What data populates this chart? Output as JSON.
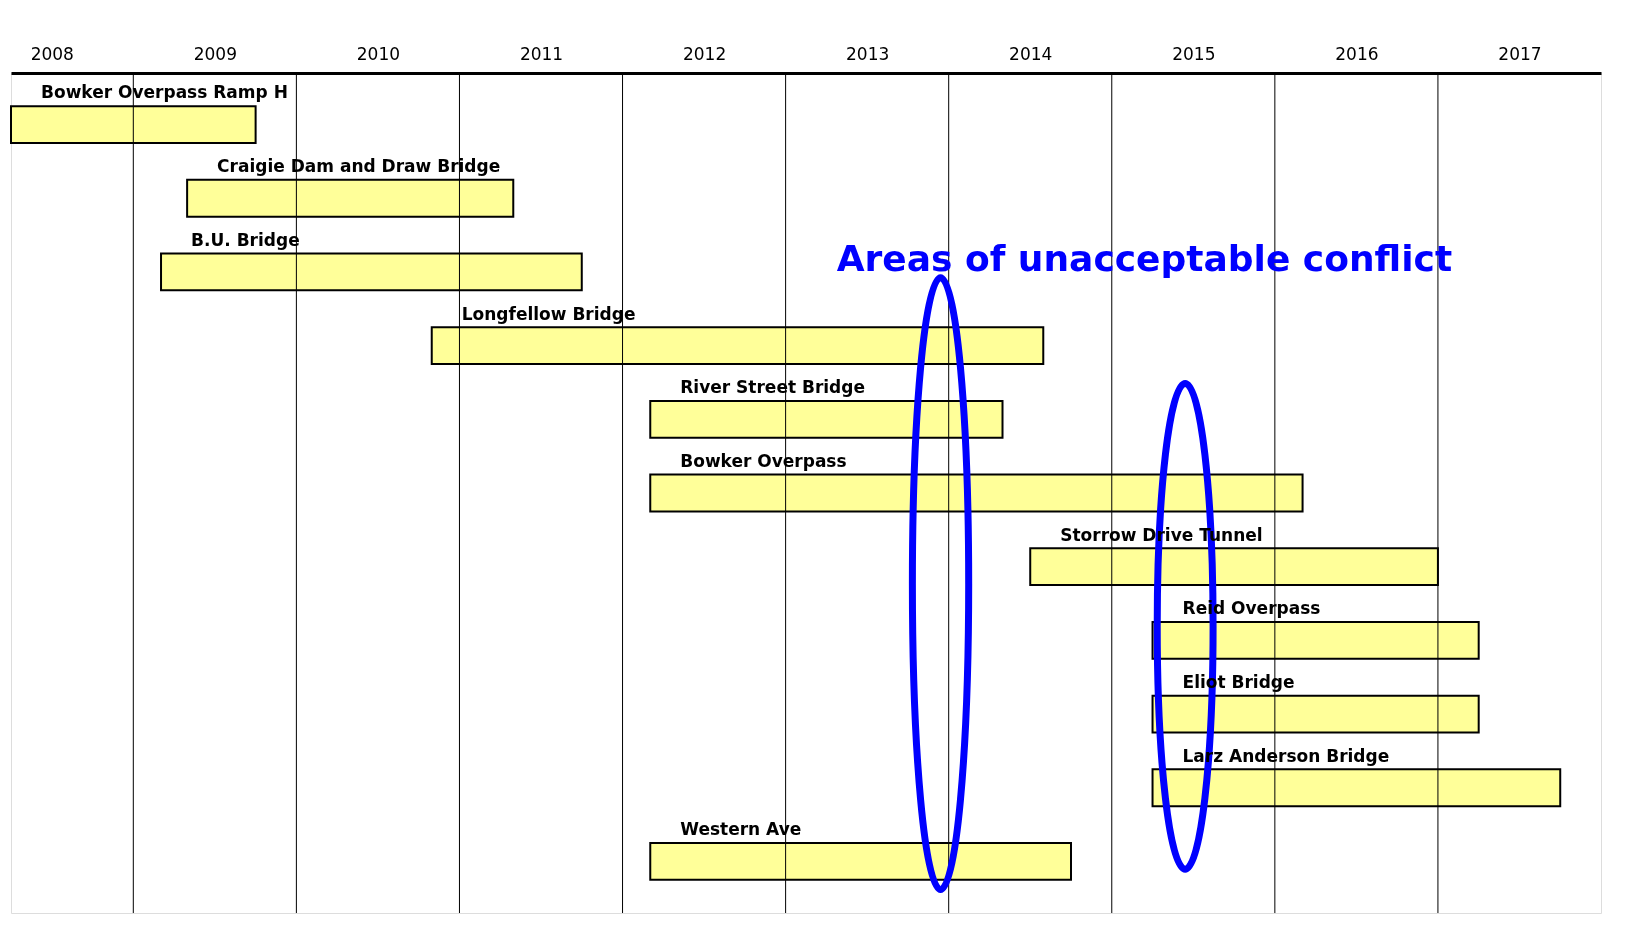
{
  "chart_data": {
    "type": "bar",
    "orientation": "horizontal",
    "categories": [
      "Bowker Overpass Ramp H",
      "Craigie Dam and Draw Bridge",
      "B.U. Bridge",
      "Longfellow Bridge",
      "River Street Bridge",
      "Bowker Overpass",
      "Storrow Drive Tunnel",
      "Reid Overpass",
      "Eliot Bridge",
      "Larz Anderson Bridge",
      "Western Ave"
    ],
    "base": [
      2008.25,
      2009.33,
      2009.17,
      2010.83,
      2012.17,
      2012.17,
      2014.5,
      2015.25,
      2015.25,
      2015.25,
      2012.17
    ],
    "values": [
      1.5,
      2.0,
      2.58,
      3.75,
      2.16,
      4.0,
      2.5,
      2.0,
      2.0,
      2.5,
      2.58
    ],
    "color": "#ffff99",
    "xlim": [
      2008.25,
      2018
    ],
    "xticks": [
      {
        "value": 2009,
        "label": null
      },
      {
        "value": 2010,
        "label": null
      },
      {
        "value": 2011,
        "label": null
      },
      {
        "value": 2012,
        "label": null
      },
      {
        "value": 2013,
        "label": null
      },
      {
        "value": 2014,
        "label": null
      },
      {
        "value": 2015,
        "label": null
      },
      {
        "value": 2016,
        "label": null
      },
      {
        "value": 2017,
        "label": null
      },
      {
        "value": 2008.5,
        "label": "2008"
      },
      {
        "value": 2009.5,
        "label": "2009"
      },
      {
        "value": 2010.5,
        "label": "2010"
      },
      {
        "value": 2011.5,
        "label": "2011"
      },
      {
        "value": 2012.5,
        "label": "2012"
      },
      {
        "value": 2013.5,
        "label": "2013"
      },
      {
        "value": 2014.5,
        "label": "2014"
      },
      {
        "value": 2015.5,
        "label": "2015"
      },
      {
        "value": 2016.5,
        "label": "2016"
      },
      {
        "value": 2017.5,
        "label": "2017"
      }
    ],
    "grid": "x",
    "annotations": [
      "Areas of unacceptable conflict"
    ]
  }
}
